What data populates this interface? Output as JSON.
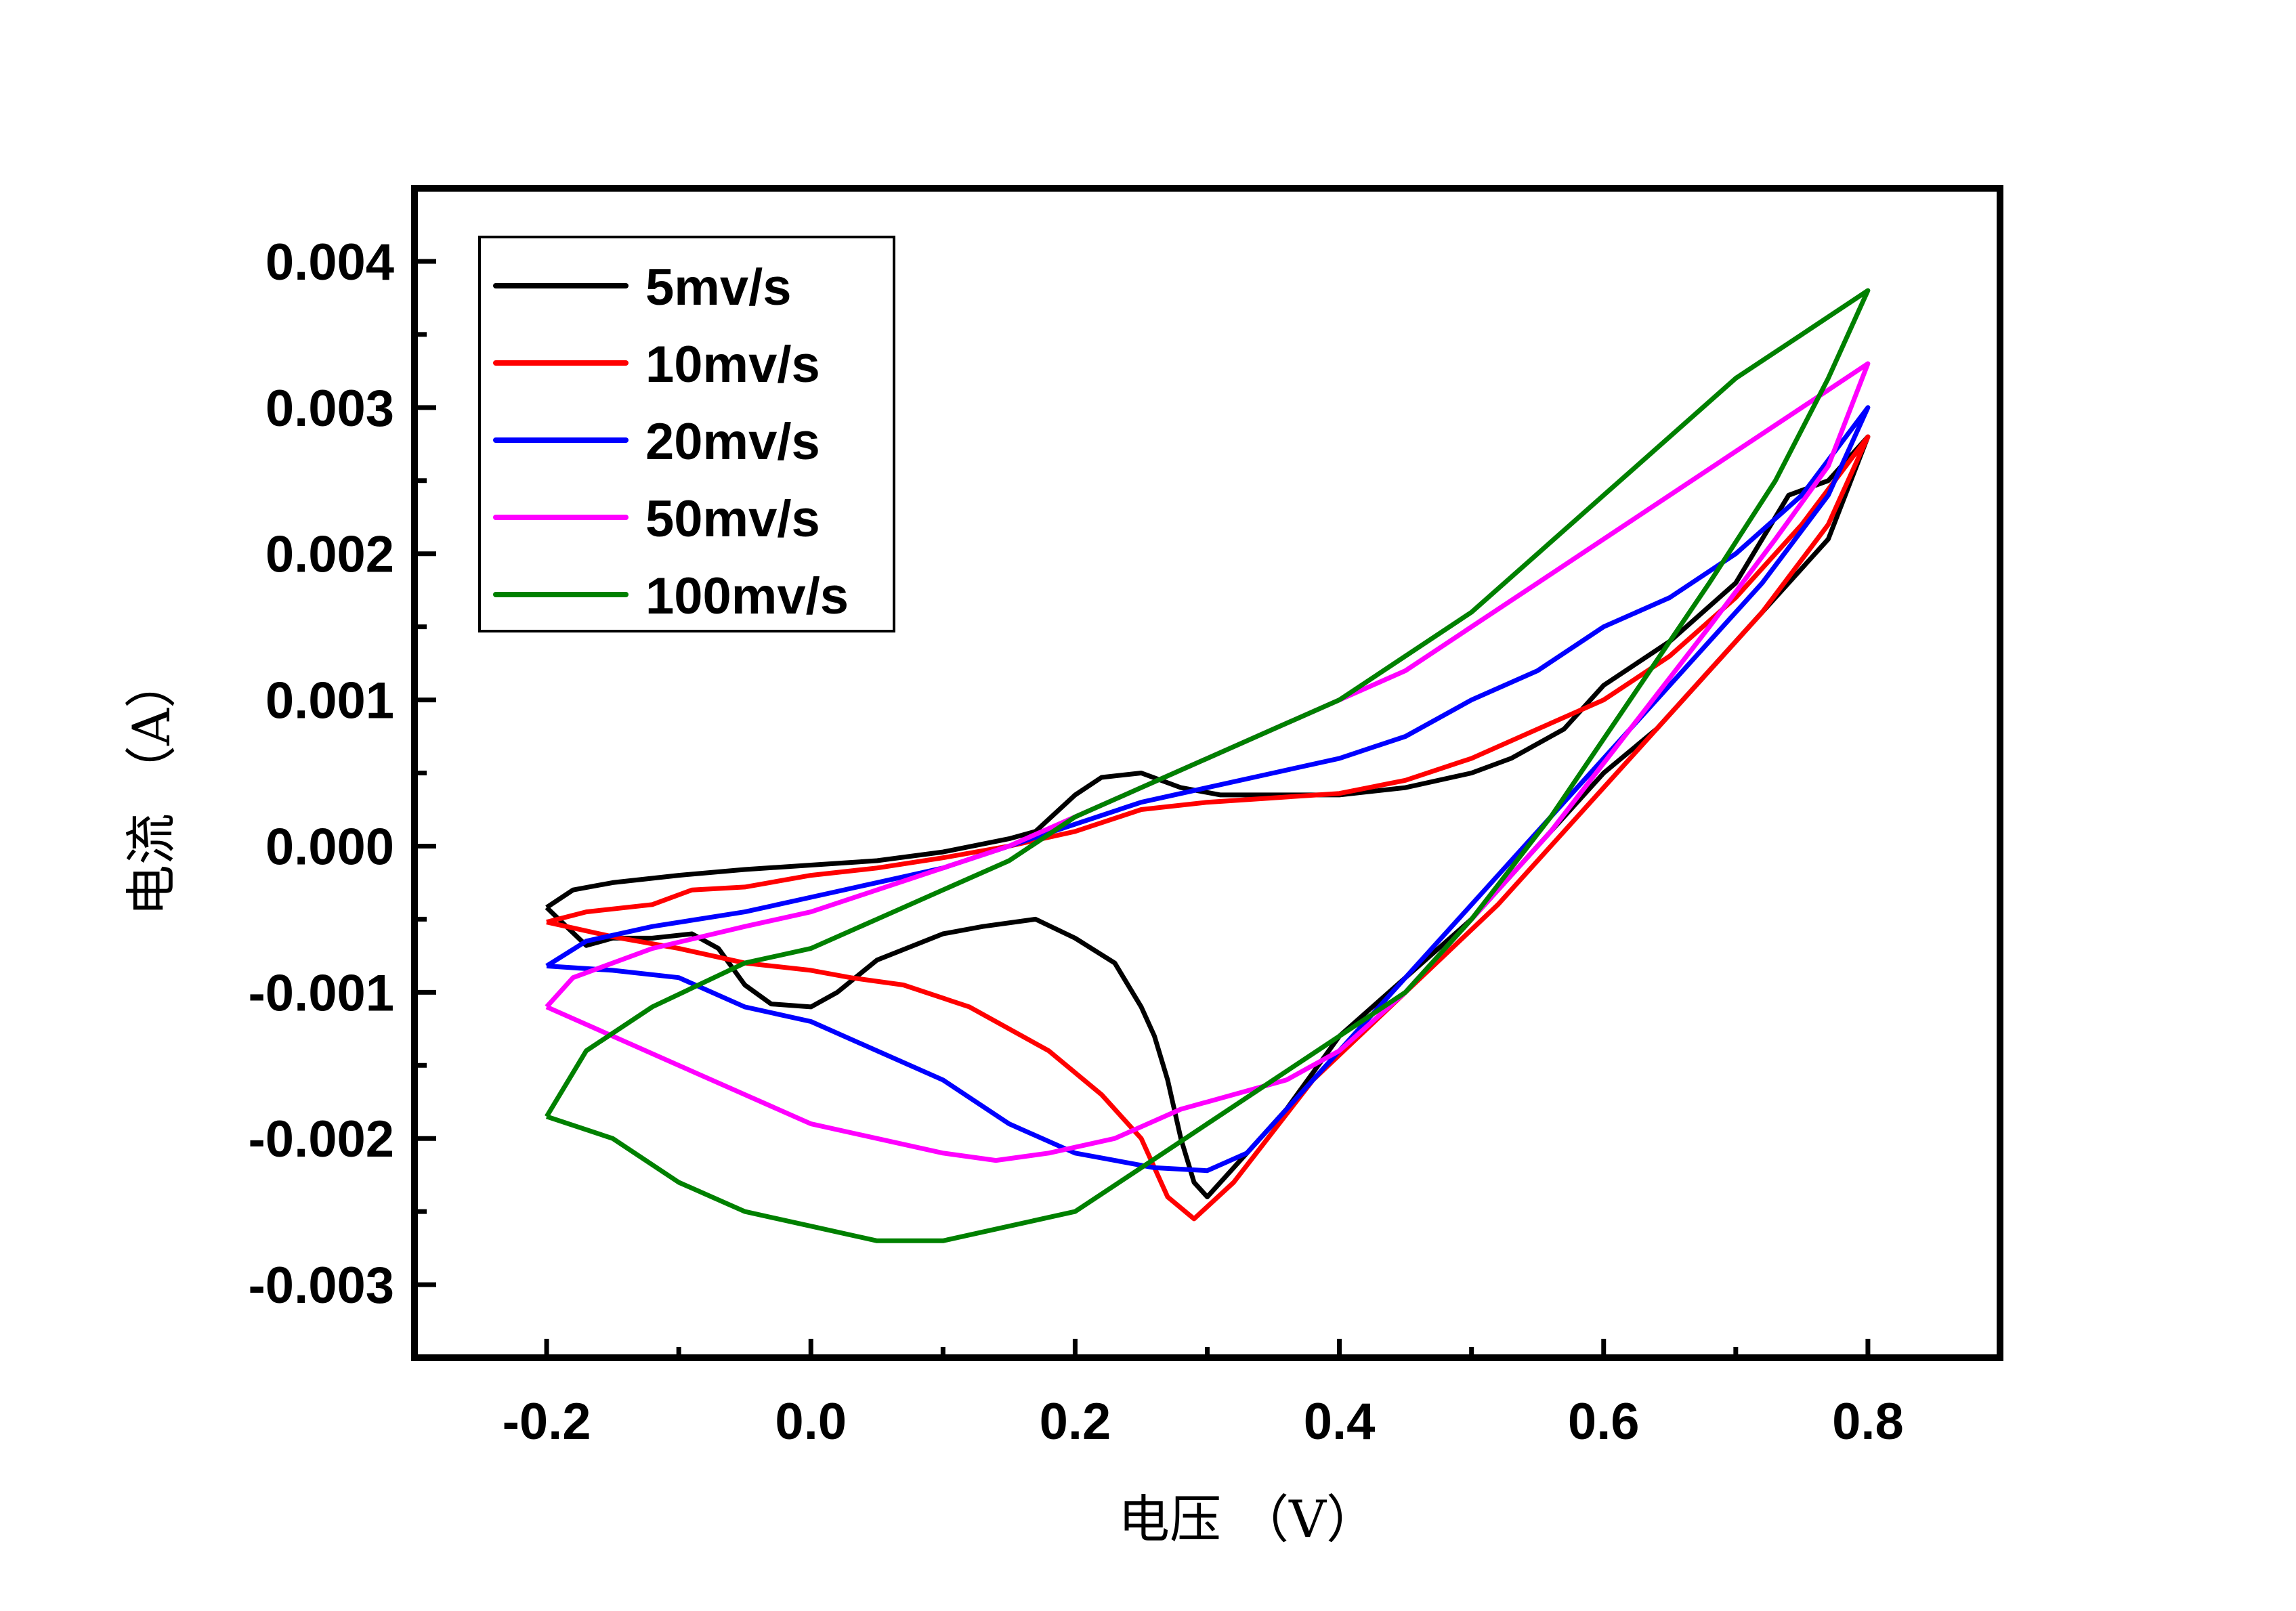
{
  "chart_data": {
    "type": "line",
    "title": "",
    "xlabel": "电压 （V）",
    "ylabel": "电流 （A）",
    "xlim": [
      -0.3,
      0.9
    ],
    "ylim": [
      -0.0035,
      0.0045
    ],
    "grid": false,
    "legend_position": "top-left",
    "xticks": [
      "-0.2",
      "0.0",
      "0.2",
      "0.4",
      "0.6",
      "0.8"
    ],
    "xtick_values": [
      -0.2,
      0.0,
      0.2,
      0.4,
      0.6,
      0.8
    ],
    "yticks": [
      "0.004",
      "0.003",
      "0.002",
      "0.001",
      "0.000",
      "-0.001",
      "-0.002",
      "-0.003"
    ],
    "ytick_values": [
      0.004,
      0.003,
      0.002,
      0.001,
      0.0,
      -0.001,
      -0.002,
      -0.003
    ],
    "series": [
      {
        "name": "5mv/s",
        "color": "#000000",
        "points": [
          [
            -0.2,
            -0.00042
          ],
          [
            -0.18,
            -0.0003
          ],
          [
            -0.15,
            -0.00025
          ],
          [
            -0.1,
            -0.0002
          ],
          [
            -0.05,
            -0.00016
          ],
          [
            0.0,
            -0.00013
          ],
          [
            0.05,
            -0.0001
          ],
          [
            0.1,
            -4e-05
          ],
          [
            0.15,
            5e-05
          ],
          [
            0.17,
            0.0001
          ],
          [
            0.2,
            0.00035
          ],
          [
            0.22,
            0.00047
          ],
          [
            0.25,
            0.0005
          ],
          [
            0.28,
            0.0004
          ],
          [
            0.31,
            0.00035
          ],
          [
            0.35,
            0.00035
          ],
          [
            0.4,
            0.00035
          ],
          [
            0.45,
            0.0004
          ],
          [
            0.5,
            0.0005
          ],
          [
            0.53,
            0.0006
          ],
          [
            0.57,
            0.0008
          ],
          [
            0.6,
            0.0011
          ],
          [
            0.65,
            0.0014
          ],
          [
            0.7,
            0.0018
          ],
          [
            0.74,
            0.0024
          ],
          [
            0.77,
            0.0025
          ],
          [
            0.8,
            0.0028
          ],
          [
            0.77,
            0.0021
          ],
          [
            0.72,
            0.0016
          ],
          [
            0.68,
            0.0012
          ],
          [
            0.64,
            0.0008
          ],
          [
            0.6,
            0.0005
          ],
          [
            0.55,
            0.0
          ],
          [
            0.5,
            -0.0005
          ],
          [
            0.45,
            -0.0009
          ],
          [
            0.4,
            -0.0013
          ],
          [
            0.36,
            -0.0018
          ],
          [
            0.33,
            -0.0021
          ],
          [
            0.3,
            -0.0024
          ],
          [
            0.29,
            -0.0023
          ],
          [
            0.28,
            -0.002
          ],
          [
            0.27,
            -0.0016
          ],
          [
            0.26,
            -0.0013
          ],
          [
            0.25,
            -0.0011
          ],
          [
            0.23,
            -0.0008
          ],
          [
            0.2,
            -0.00063
          ],
          [
            0.17,
            -0.0005
          ],
          [
            0.13,
            -0.00055
          ],
          [
            0.1,
            -0.0006
          ],
          [
            0.05,
            -0.00078
          ],
          [
            0.02,
            -0.001
          ],
          [
            0.0,
            -0.0011
          ],
          [
            -0.03,
            -0.00108
          ],
          [
            -0.05,
            -0.00095
          ],
          [
            -0.07,
            -0.0007
          ],
          [
            -0.09,
            -0.0006
          ],
          [
            -0.12,
            -0.00063
          ],
          [
            -0.15,
            -0.00063
          ],
          [
            -0.17,
            -0.00068
          ],
          [
            -0.185,
            -0.00055
          ],
          [
            -0.2,
            -0.00042
          ]
        ]
      },
      {
        "name": "10mv/s",
        "color": "#ff0000",
        "points": [
          [
            -0.2,
            -0.00052
          ],
          [
            -0.17,
            -0.00045
          ],
          [
            -0.12,
            -0.0004
          ],
          [
            -0.09,
            -0.0003
          ],
          [
            -0.05,
            -0.00028
          ],
          [
            0.0,
            -0.0002
          ],
          [
            0.05,
            -0.00015
          ],
          [
            0.1,
            -8e-05
          ],
          [
            0.15,
            0.0
          ],
          [
            0.2,
            0.0001
          ],
          [
            0.25,
            0.00025
          ],
          [
            0.3,
            0.0003
          ],
          [
            0.35,
            0.00033
          ],
          [
            0.4,
            0.00036
          ],
          [
            0.45,
            0.00045
          ],
          [
            0.5,
            0.0006
          ],
          [
            0.55,
            0.0008
          ],
          [
            0.6,
            0.001
          ],
          [
            0.65,
            0.0013
          ],
          [
            0.7,
            0.0017
          ],
          [
            0.75,
            0.0022
          ],
          [
            0.8,
            0.0028
          ],
          [
            0.77,
            0.0022
          ],
          [
            0.72,
            0.0016
          ],
          [
            0.68,
            0.0012
          ],
          [
            0.63,
            0.0007
          ],
          [
            0.58,
            0.0002
          ],
          [
            0.52,
            -0.0004
          ],
          [
            0.45,
            -0.001
          ],
          [
            0.38,
            -0.0016
          ],
          [
            0.32,
            -0.0023
          ],
          [
            0.29,
            -0.00255
          ],
          [
            0.27,
            -0.0024
          ],
          [
            0.25,
            -0.002
          ],
          [
            0.22,
            -0.0017
          ],
          [
            0.18,
            -0.0014
          ],
          [
            0.12,
            -0.0011
          ],
          [
            0.07,
            -0.00095
          ],
          [
            0.03,
            -0.0009
          ],
          [
            0.0,
            -0.00085
          ],
          [
            -0.05,
            -0.0008
          ],
          [
            -0.1,
            -0.0007
          ],
          [
            -0.15,
            -0.00062
          ],
          [
            -0.2,
            -0.00052
          ]
        ]
      },
      {
        "name": "20mv/s",
        "color": "#0000ff",
        "points": [
          [
            -0.2,
            -0.00082
          ],
          [
            -0.17,
            -0.00065
          ],
          [
            -0.12,
            -0.00055
          ],
          [
            -0.05,
            -0.00045
          ],
          [
            0.0,
            -0.00035
          ],
          [
            0.05,
            -0.00025
          ],
          [
            0.1,
            -0.00015
          ],
          [
            0.15,
            0.0
          ],
          [
            0.2,
            0.00015
          ],
          [
            0.25,
            0.0003
          ],
          [
            0.3,
            0.0004
          ],
          [
            0.35,
            0.0005
          ],
          [
            0.4,
            0.0006
          ],
          [
            0.45,
            0.00075
          ],
          [
            0.5,
            0.001
          ],
          [
            0.55,
            0.0012
          ],
          [
            0.6,
            0.0015
          ],
          [
            0.65,
            0.0017
          ],
          [
            0.7,
            0.002
          ],
          [
            0.75,
            0.0024
          ],
          [
            0.8,
            0.003
          ],
          [
            0.77,
            0.0024
          ],
          [
            0.72,
            0.0018
          ],
          [
            0.67,
            0.0013
          ],
          [
            0.62,
            0.0008
          ],
          [
            0.56,
            0.0002
          ],
          [
            0.5,
            -0.0004
          ],
          [
            0.44,
            -0.001
          ],
          [
            0.38,
            -0.0016
          ],
          [
            0.33,
            -0.0021
          ],
          [
            0.3,
            -0.00222
          ],
          [
            0.26,
            -0.0022
          ],
          [
            0.2,
            -0.0021
          ],
          [
            0.15,
            -0.0019
          ],
          [
            0.1,
            -0.0016
          ],
          [
            0.05,
            -0.0014
          ],
          [
            0.0,
            -0.0012
          ],
          [
            -0.05,
            -0.0011
          ],
          [
            -0.1,
            -0.0009
          ],
          [
            -0.15,
            -0.00085
          ],
          [
            -0.2,
            -0.00082
          ]
        ]
      },
      {
        "name": "50mv/s",
        "color": "#ff00ff",
        "points": [
          [
            -0.2,
            -0.0011
          ],
          [
            -0.18,
            -0.0009
          ],
          [
            -0.12,
            -0.0007
          ],
          [
            -0.05,
            -0.00055
          ],
          [
            0.0,
            -0.00045
          ],
          [
            0.05,
            -0.0003
          ],
          [
            0.1,
            -0.00015
          ],
          [
            0.15,
            0.0
          ],
          [
            0.2,
            0.0002
          ],
          [
            0.25,
            0.0004
          ],
          [
            0.3,
            0.0006
          ],
          [
            0.35,
            0.0008
          ],
          [
            0.4,
            0.001
          ],
          [
            0.45,
            0.0012
          ],
          [
            0.5,
            0.0015
          ],
          [
            0.55,
            0.0018
          ],
          [
            0.6,
            0.0021
          ],
          [
            0.65,
            0.0024
          ],
          [
            0.7,
            0.0027
          ],
          [
            0.75,
            0.003
          ],
          [
            0.8,
            0.0033
          ],
          [
            0.77,
            0.0026
          ],
          [
            0.73,
            0.0021
          ],
          [
            0.68,
            0.0015
          ],
          [
            0.62,
            0.0008
          ],
          [
            0.56,
            0.0001
          ],
          [
            0.5,
            -0.0005
          ],
          [
            0.45,
            -0.001
          ],
          [
            0.4,
            -0.0014
          ],
          [
            0.36,
            -0.0016
          ],
          [
            0.32,
            -0.0017
          ],
          [
            0.28,
            -0.0018
          ],
          [
            0.23,
            -0.002
          ],
          [
            0.18,
            -0.0021
          ],
          [
            0.14,
            -0.00215
          ],
          [
            0.1,
            -0.0021
          ],
          [
            0.05,
            -0.002
          ],
          [
            0.0,
            -0.0019
          ],
          [
            -0.05,
            -0.0017
          ],
          [
            -0.1,
            -0.0015
          ],
          [
            -0.15,
            -0.0013
          ],
          [
            -0.2,
            -0.0011
          ]
        ]
      },
      {
        "name": "100mv/s",
        "color": "#008000",
        "points": [
          [
            -0.2,
            -0.00185
          ],
          [
            -0.17,
            -0.0014
          ],
          [
            -0.12,
            -0.0011
          ],
          [
            -0.05,
            -0.0008
          ],
          [
            0.0,
            -0.0007
          ],
          [
            0.05,
            -0.0005
          ],
          [
            0.1,
            -0.0003
          ],
          [
            0.15,
            -0.0001
          ],
          [
            0.2,
            0.0002
          ],
          [
            0.25,
            0.0004
          ],
          [
            0.3,
            0.0006
          ],
          [
            0.35,
            0.0008
          ],
          [
            0.4,
            0.001
          ],
          [
            0.45,
            0.0013
          ],
          [
            0.5,
            0.0016
          ],
          [
            0.55,
            0.002
          ],
          [
            0.6,
            0.0024
          ],
          [
            0.65,
            0.0028
          ],
          [
            0.7,
            0.0032
          ],
          [
            0.75,
            0.0035
          ],
          [
            0.8,
            0.0038
          ],
          [
            0.77,
            0.0032
          ],
          [
            0.73,
            0.0025
          ],
          [
            0.68,
            0.0018
          ],
          [
            0.62,
            0.001
          ],
          [
            0.56,
            0.0002
          ],
          [
            0.5,
            -0.0005
          ],
          [
            0.45,
            -0.001
          ],
          [
            0.4,
            -0.0013
          ],
          [
            0.35,
            -0.0016
          ],
          [
            0.3,
            -0.0019
          ],
          [
            0.25,
            -0.0022
          ],
          [
            0.2,
            -0.0025
          ],
          [
            0.15,
            -0.0026
          ],
          [
            0.1,
            -0.0027
          ],
          [
            0.05,
            -0.0027
          ],
          [
            0.0,
            -0.0026
          ],
          [
            -0.05,
            -0.0025
          ],
          [
            -0.1,
            -0.0023
          ],
          [
            -0.15,
            -0.002
          ],
          [
            -0.2,
            -0.00185
          ]
        ]
      }
    ]
  }
}
